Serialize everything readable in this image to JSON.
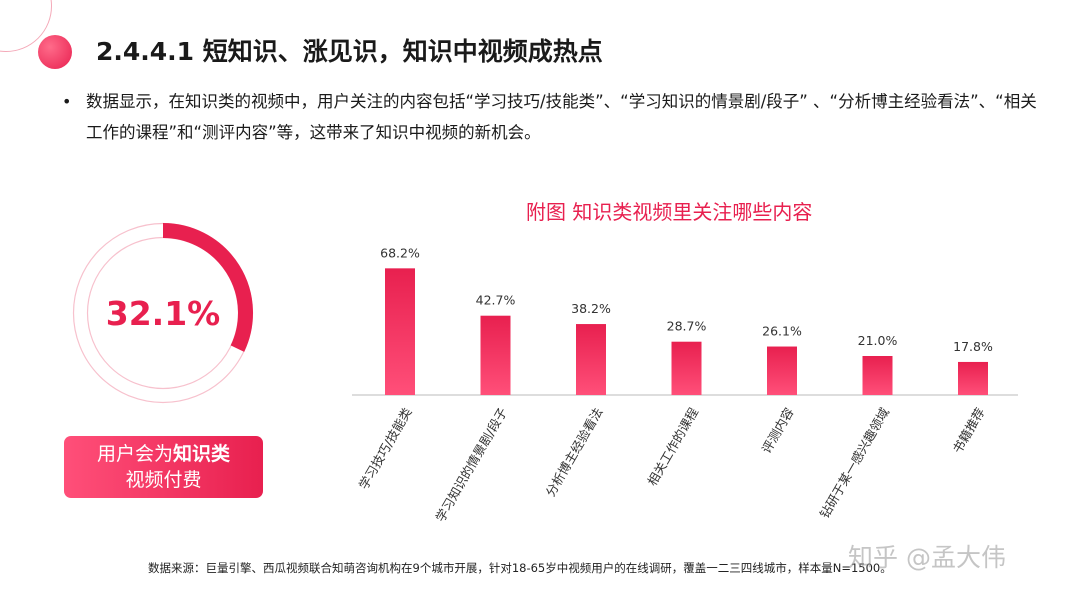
{
  "header": {
    "title": "2.4.4.1  短知识、涨见识，知识中视频成热点"
  },
  "bullet": {
    "text": "数据显示，在知识类的视频中，用户关注的内容包括“学习技巧/技能类”、“学习知识的情景剧/段子” 、“分析博主经验看法”、“相关工作的课程”和“测评内容”等，这带来了知识中视频的新机会。"
  },
  "donut": {
    "value_label": "32.1%",
    "fraction": 0.321,
    "caption_line1_prefix": "用户会为",
    "caption_line1_highlight": "知识类",
    "caption_line2": "视频付费"
  },
  "colors": {
    "accent": "#e8204f",
    "accent_light": "#ff4f79",
    "ring_light": "#f7c1cd"
  },
  "chart_data": {
    "type": "bar",
    "title": "附图 知识类视频里关注哪些内容",
    "categories": [
      "学习技巧/技能类",
      "学习知识的情景剧/段子",
      "分析博主经验看法",
      "相关工作的课程",
      "评测内容",
      "钻研于某一感兴趣领域",
      "书籍推荐"
    ],
    "values": [
      68.2,
      42.7,
      38.2,
      28.7,
      26.1,
      21.0,
      17.8
    ],
    "value_labels": [
      "68.2%",
      "42.7%",
      "38.2%",
      "28.7%",
      "26.1%",
      "21.0%",
      "17.8%"
    ],
    "xlabel": "",
    "ylabel": "",
    "ylim": [
      0,
      70
    ],
    "grid": false
  },
  "footer": {
    "source": "数据来源：巨量引擎、西瓜视频联合知萌咨询机构在9个城市开展，针对18-65岁中视频用户的在线调研，覆盖一二三四线城市，样本量N=1500。",
    "watermark": "知乎 @孟大伟"
  }
}
